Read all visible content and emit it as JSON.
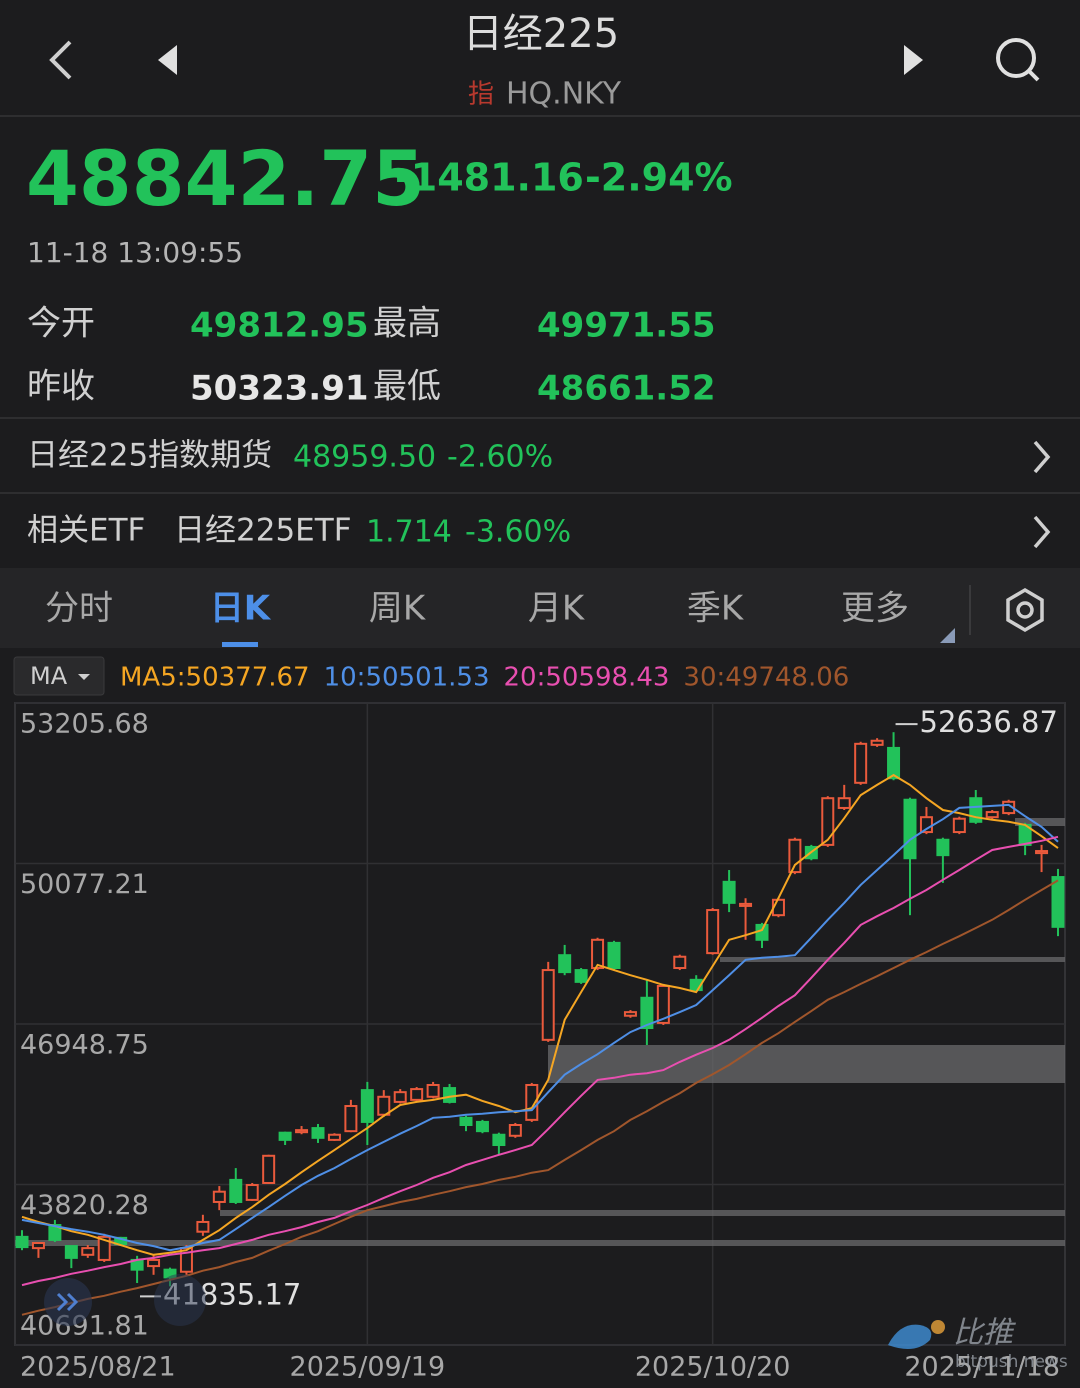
{
  "header": {
    "title": "日经225",
    "tag": "指",
    "code": "HQ.NKY"
  },
  "quote": {
    "price": "48842.75",
    "change": "-1481.16",
    "change_pct": "-2.94%",
    "time": "11-18 13:09:55",
    "color": "#22c25a"
  },
  "stats": [
    {
      "label": "今开",
      "value": "49812.95",
      "color": "#22c25a"
    },
    {
      "label": "最高",
      "value": "49971.55",
      "color": "#22c25a"
    },
    {
      "label": "昨收",
      "value": "50323.91",
      "color": "#e6e6e6"
    },
    {
      "label": "最低",
      "value": "48661.52",
      "color": "#22c25a"
    }
  ],
  "related": [
    {
      "label": "日经225指数期货",
      "price": "48959.50",
      "change": "-2.60%"
    },
    {
      "label": "相关ETF",
      "name": "日经225ETF",
      "price": "1.714",
      "change": "-3.60%"
    }
  ],
  "tabs": [
    "分时",
    "日K",
    "周K",
    "月K",
    "季K",
    "更多"
  ],
  "active_tab": 1,
  "indicator": "MA",
  "chart_data": {
    "type": "candlestick",
    "categories": [
      "2025/08/21",
      null,
      null,
      null,
      null,
      null,
      null,
      null,
      null,
      null,
      null,
      null,
      null,
      null,
      null,
      null,
      null,
      null,
      null,
      null,
      null,
      "2025/09/19",
      null,
      null,
      null,
      null,
      null,
      null,
      null,
      null,
      null,
      null,
      null,
      null,
      null,
      null,
      null,
      null,
      null,
      null,
      null,
      null,
      "2025/10/20",
      null,
      null,
      null,
      null,
      null,
      null,
      null,
      null,
      null,
      null,
      null,
      null,
      null,
      null,
      null,
      null,
      null,
      null,
      null,
      null,
      "2025/11/18"
    ],
    "open": [
      42800,
      42580,
      43030,
      42620,
      42450,
      42350,
      42780,
      42350,
      42230,
      42160,
      42120,
      42900,
      43480,
      43910,
      43520,
      43850,
      44830,
      44840,
      44920,
      44690,
      44860,
      45660,
      45180,
      45430,
      45470,
      45530,
      45700,
      45120,
      45040,
      44790,
      44770,
      45080,
      46640,
      48290,
      48000,
      48040,
      48530,
      47110,
      47460,
      46970,
      48040,
      47810,
      48330,
      49720,
      49250,
      48880,
      49070,
      49910,
      50400,
      50440,
      51160,
      51650,
      52390,
      52330,
      51320,
      50690,
      50540,
      50690,
      51350,
      50980,
      51060,
      50830,
      50280,
      49812.95
    ],
    "high": [
      42930,
      42680,
      43130,
      42620,
      42640,
      42860,
      42800,
      42430,
      42450,
      42200,
      42640,
      43230,
      43790,
      44140,
      43850,
      44400,
      44850,
      44960,
      45000,
      44820,
      45470,
      45820,
      45660,
      45680,
      45720,
      45820,
      45780,
      45160,
      45080,
      44830,
      45020,
      45800,
      48160,
      48490,
      48040,
      48630,
      48570,
      47220,
      47810,
      47730,
      48300,
      47900,
      49210,
      49950,
      49400,
      48920,
      49410,
      50580,
      50440,
      51390,
      51610,
      52450,
      52520,
      52636.87,
      51360,
      51180,
      50580,
      50990,
      51510,
      51120,
      51320,
      50870,
      50440,
      49971.55
    ],
    "low": [
      42540,
      42390,
      42700,
      42190,
      42390,
      42310,
      42640,
      41900,
      42060,
      41835.17,
      42060,
      42820,
      43320,
      43440,
      43500,
      43830,
      44590,
      44800,
      44630,
      44670,
      44840,
      44590,
      45140,
      45400,
      45440,
      45500,
      45400,
      44860,
      44820,
      44400,
      44730,
      45040,
      46600,
      47900,
      47730,
      48000,
      48000,
      47070,
      46540,
      46930,
      48000,
      47580,
      48300,
      49130,
      48590,
      48430,
      49030,
      49870,
      50140,
      50400,
      51120,
      51610,
      52350,
      51700,
      49070,
      50650,
      49700,
      50650,
      50850,
      50940,
      51020,
      50240,
      49910,
      48661.52
    ],
    "close": [
      42600,
      42680,
      42740,
      42390,
      42580,
      42800,
      42660,
      42160,
      42350,
      42010,
      42580,
      43090,
      43680,
      43480,
      43810,
      44380,
      44690,
      44880,
      44730,
      44790,
      45350,
      45040,
      45530,
      45620,
      45680,
      45760,
      45430,
      44980,
      44860,
      44590,
      44980,
      45760,
      48000,
      47960,
      47770,
      48590,
      48040,
      47180,
      46870,
      47690,
      48260,
      47610,
      49170,
      49310,
      49290,
      48590,
      49370,
      50540,
      50180,
      51350,
      51350,
      52410,
      52470,
      51740,
      50180,
      50980,
      50240,
      50950,
      50890,
      51080,
      51280,
      50440,
      50320,
      48842.75
    ],
    "up_color": "#ea5a3c",
    "down_color": "#22c25a",
    "series": [
      {
        "name": "MA5:",
        "color": "#f5a623",
        "values": [
          43190,
          43090,
          43010,
          42910,
          42840,
          42740,
          42640,
          42540,
          42450,
          42490,
          42540,
          42740,
          42930,
          43170,
          43380,
          43620,
          43830,
          44060,
          44280,
          44490,
          44710,
          44920,
          45160,
          45370,
          45430,
          45470,
          45530,
          45570,
          45450,
          45350,
          45230,
          45310,
          45860,
          47030,
          47570,
          48100,
          48000,
          47900,
          47810,
          47710,
          47650,
          47570,
          48080,
          48590,
          48680,
          48780,
          49400,
          50050,
          50300,
          50540,
          50960,
          51410,
          51610,
          51800,
          51610,
          51350,
          51120,
          51060,
          50980,
          50930,
          50890,
          50830,
          50610,
          50377.67
        ]
      },
      {
        "name": "10:",
        "color": "#4f8fe6",
        "values": [
          43130,
          43070,
          43010,
          42950,
          42900,
          42840,
          42760,
          42680,
          42620,
          42540,
          42600,
          42680,
          42740,
          42950,
          43170,
          43380,
          43600,
          43810,
          43990,
          44140,
          44320,
          44490,
          44650,
          44810,
          44960,
          45120,
          45140,
          45180,
          45200,
          45230,
          45250,
          45270,
          45620,
          45960,
          46170,
          46360,
          46580,
          46790,
          46930,
          47050,
          47180,
          47320,
          47610,
          47900,
          48200,
          48240,
          48260,
          48290,
          48630,
          48980,
          49310,
          49660,
          49950,
          50240,
          50540,
          50750,
          50940,
          51160,
          51180,
          51200,
          51220,
          51000,
          50790,
          50501.53
        ]
      },
      {
        "name": "20:",
        "color": "#e84fb0",
        "values": [
          41860,
          41940,
          42000,
          42080,
          42140,
          42210,
          42270,
          42350,
          42390,
          42450,
          42490,
          42540,
          42580,
          42660,
          42740,
          42840,
          42910,
          42990,
          43090,
          43170,
          43300,
          43420,
          43560,
          43690,
          43810,
          43950,
          44060,
          44200,
          44300,
          44400,
          44490,
          44590,
          44900,
          45230,
          45550,
          45860,
          45900,
          45960,
          45990,
          46050,
          46210,
          46350,
          46480,
          46640,
          46850,
          47070,
          47300,
          47510,
          47850,
          48200,
          48530,
          48880,
          49050,
          49210,
          49390,
          49560,
          49760,
          49950,
          50150,
          50340,
          50400,
          50460,
          50520,
          50598.43
        ]
      },
      {
        "name": "30:",
        "color": "#a0562c",
        "values": [
          41280,
          41360,
          41430,
          41510,
          41590,
          41650,
          41730,
          41800,
          41880,
          41960,
          42040,
          42140,
          42210,
          42310,
          42390,
          42530,
          42660,
          42800,
          42910,
          43050,
          43190,
          43320,
          43400,
          43480,
          43540,
          43620,
          43690,
          43770,
          43830,
          43910,
          43970,
          44050,
          44100,
          44300,
          44490,
          44690,
          44860,
          45080,
          45250,
          45430,
          45600,
          45800,
          45970,
          46150,
          46360,
          46580,
          46770,
          46990,
          47200,
          47420,
          47570,
          47730,
          47880,
          48040,
          48200,
          48350,
          48510,
          48660,
          48820,
          48980,
          49170,
          49370,
          49560,
          49748.06
        ]
      }
    ],
    "ylim": [
      40691.81,
      53205.68
    ],
    "yticks": [
      53205.68,
      50077.21,
      46948.75,
      43820.28,
      40691.81
    ],
    "grid": true
  },
  "watermark": {
    "name": "比推",
    "site": "bitpush.news"
  }
}
